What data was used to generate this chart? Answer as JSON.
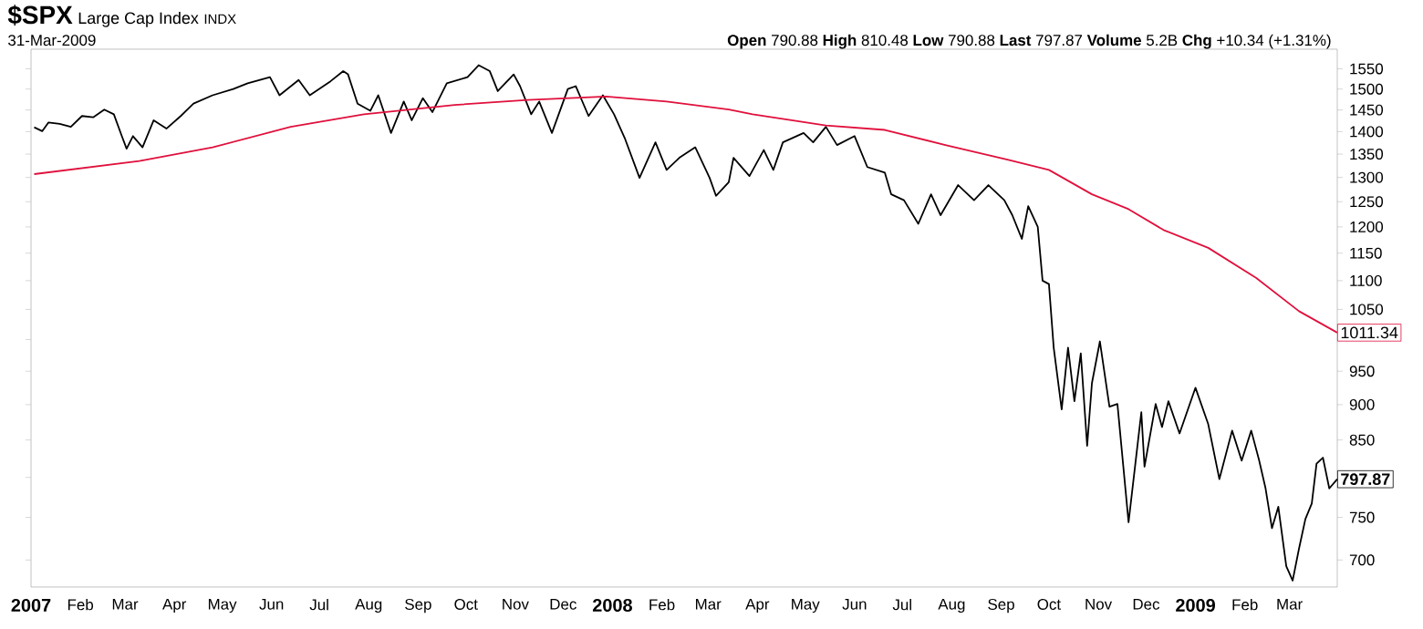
{
  "chart_data": {
    "type": "line",
    "title": "$SPX",
    "subtitle": "Large Cap Index",
    "annotations": [
      "INDX",
      "31-Mar-2009",
      "**Open** 790.88  **High** 810.48  **Low** 790.88  **Last** 797.87  **Volume** 5.2B  **Chg** +10.34 (+1.31%)",
      {
        "text": "797.87",
        "x": "2009-03-31",
        "y": 797.87
      },
      {
        "text": "1011.34",
        "x": "2009-03-31",
        "y": 1011.34
      }
    ],
    "log": "y",
    "grid": false,
    "marker": "none",
    "line_style": "solid",
    "xlim": [
      "2007-01-01",
      "2009-03-31"
    ],
    "ylim": [
      670,
      1600
    ],
    "xticks": [
      {
        "value": "2007-01-01",
        "label": "2007"
      },
      {
        "value": "2007-02-01",
        "label": "Feb"
      },
      {
        "value": "2007-03-01",
        "label": "Mar"
      },
      {
        "value": "2007-04-01",
        "label": "Apr"
      },
      {
        "value": "2007-05-01",
        "label": "May"
      },
      {
        "value": "2007-06-01",
        "label": "Jun"
      },
      {
        "value": "2007-07-01",
        "label": "Jul"
      },
      {
        "value": "2007-08-01",
        "label": "Aug"
      },
      {
        "value": "2007-09-01",
        "label": "Sep"
      },
      {
        "value": "2007-10-01",
        "label": "Oct"
      },
      {
        "value": "2007-11-01",
        "label": "Nov"
      },
      {
        "value": "2007-12-01",
        "label": "Dec"
      },
      {
        "value": "2008-01-01",
        "label": "2008"
      },
      {
        "value": "2008-02-01",
        "label": "Feb"
      },
      {
        "value": "2008-03-01",
        "label": "Mar"
      },
      {
        "value": "2008-04-01",
        "label": "Apr"
      },
      {
        "value": "2008-05-01",
        "label": "May"
      },
      {
        "value": "2008-06-01",
        "label": "Jun"
      },
      {
        "value": "2008-07-01",
        "label": "Jul"
      },
      {
        "value": "2008-08-01",
        "label": "Aug"
      },
      {
        "value": "2008-09-01",
        "label": "Sep"
      },
      {
        "value": "2008-10-01",
        "label": "Oct"
      },
      {
        "value": "2008-11-01",
        "label": "Nov"
      },
      {
        "value": "2008-12-01",
        "label": "Dec"
      },
      {
        "value": "2009-01-01",
        "label": "2009"
      },
      {
        "value": "2009-02-01",
        "label": "Feb"
      },
      {
        "value": "2009-03-01",
        "label": "Mar"
      }
    ],
    "yticks": [
      700,
      750,
      {
        "value": 800,
        "label": null
      },
      850,
      900,
      950,
      {
        "value": 1000,
        "label": null
      },
      1050,
      1100,
      1150,
      1200,
      1250,
      1300,
      1350,
      1400,
      1450,
      1500,
      1550
    ],
    "series": [
      {
        "color": "#000000",
        "x": [
          "2007-01-03",
          "2007-01-08",
          "2007-01-12",
          "2007-01-19",
          "2007-01-26",
          "2007-02-02",
          "2007-02-09",
          "2007-02-16",
          "2007-02-22",
          "2007-02-27",
          "2007-03-02",
          "2007-03-06",
          "2007-03-12",
          "2007-03-19",
          "2007-03-27",
          "2007-04-05",
          "2007-04-13",
          "2007-04-25",
          "2007-05-08",
          "2007-05-17",
          "2007-05-31",
          "2007-06-06",
          "2007-06-18",
          "2007-06-25",
          "2007-07-08",
          "2007-07-16",
          "2007-07-19",
          "2007-07-25",
          "2007-08-02",
          "2007-08-07",
          "2007-08-15",
          "2007-08-23",
          "2007-08-28",
          "2007-09-04",
          "2007-09-10",
          "2007-09-19",
          "2007-10-02",
          "2007-10-09",
          "2007-10-16",
          "2007-10-21",
          "2007-10-31",
          "2007-11-04",
          "2007-11-11",
          "2007-11-16",
          "2007-11-24",
          "2007-12-04",
          "2007-12-09",
          "2007-12-17",
          "2007-12-26",
          "2008-01-02",
          "2008-01-09",
          "2008-01-18",
          "2008-01-28",
          "2008-02-04",
          "2008-02-12",
          "2008-02-22",
          "2008-03-02",
          "2008-03-06",
          "2008-03-14",
          "2008-03-17",
          "2008-03-27",
          "2008-04-05",
          "2008-04-11",
          "2008-04-17",
          "2008-04-30",
          "2008-05-06",
          "2008-05-14",
          "2008-05-21",
          "2008-06-01",
          "2008-06-09",
          "2008-06-20",
          "2008-06-24",
          "2008-07-02",
          "2008-07-11",
          "2008-07-19",
          "2008-07-25",
          "2008-08-05",
          "2008-08-15",
          "2008-08-24",
          "2008-09-03",
          "2008-09-08",
          "2008-09-14",
          "2008-09-18",
          "2008-09-24",
          "2008-09-27",
          "2008-10-01",
          "2008-10-04",
          "2008-10-09",
          "2008-10-13",
          "2008-10-17",
          "2008-10-21",
          "2008-10-25",
          "2008-10-28",
          "2008-11-02",
          "2008-11-08",
          "2008-11-13",
          "2008-11-20",
          "2008-11-28",
          "2008-11-30",
          "2008-12-07",
          "2008-12-11",
          "2008-12-15",
          "2008-12-22",
          "2009-01-01",
          "2009-01-09",
          "2009-01-16",
          "2009-01-24",
          "2009-01-30",
          "2009-02-05",
          "2009-02-10",
          "2009-02-14",
          "2009-02-18",
          "2009-02-22",
          "2009-02-27",
          "2009-03-03",
          "2009-03-07",
          "2009-03-11",
          "2009-03-15",
          "2009-03-18",
          "2009-03-22",
          "2009-03-26",
          "2009-03-31"
        ],
        "values": [
          1410,
          1401,
          1421,
          1418,
          1411,
          1436,
          1433,
          1451,
          1440,
          1390,
          1362,
          1390,
          1365,
          1426,
          1407,
          1436,
          1465,
          1485,
          1500,
          1514,
          1529,
          1485,
          1522,
          1485,
          1519,
          1544,
          1536,
          1465,
          1448,
          1485,
          1397,
          1470,
          1426,
          1478,
          1445,
          1514,
          1529,
          1559,
          1544,
          1495,
          1536,
          1507,
          1440,
          1470,
          1397,
          1500,
          1507,
          1436,
          1485,
          1440,
          1383,
          1299,
          1376,
          1316,
          1342,
          1365,
          1299,
          1262,
          1290,
          1342,
          1303,
          1359,
          1316,
          1376,
          1397,
          1376,
          1411,
          1370,
          1390,
          1322,
          1310,
          1265,
          1253,
          1206,
          1265,
          1223,
          1284,
          1253,
          1284,
          1253,
          1223,
          1177,
          1241,
          1200,
          1100,
          1094,
          987,
          893,
          987,
          905,
          978,
          842,
          932,
          997,
          897,
          901,
          744,
          889,
          814,
          901,
          868,
          905,
          859,
          925,
          872,
          798,
          863,
          822,
          863,
          822,
          786,
          737,
          763,
          693,
          677,
          713,
          748,
          767,
          818,
          826,
          786,
          797.87
        ]
      },
      {
        "color": "#e0103c",
        "x": [
          "2007-01-03",
          "2007-03-10",
          "2007-04-25",
          "2007-06-13",
          "2007-07-29",
          "2007-09-24",
          "2007-11-09",
          "2007-12-28",
          "2008-02-04",
          "2008-03-14",
          "2008-03-29",
          "2008-05-14",
          "2008-06-20",
          "2008-07-28",
          "2008-09-05",
          "2008-10-01",
          "2008-10-28",
          "2008-11-20",
          "2008-12-12",
          "2009-01-09",
          "2009-02-08",
          "2009-03-07",
          "2009-03-31"
        ],
        "values": [
          1307,
          1335,
          1365,
          1411,
          1440,
          1462,
          1474,
          1482,
          1470,
          1451,
          1440,
          1414,
          1404,
          1370,
          1338,
          1316,
          1265,
          1235,
          1194,
          1160,
          1105,
          1047,
          1011.34
        ]
      }
    ]
  }
}
